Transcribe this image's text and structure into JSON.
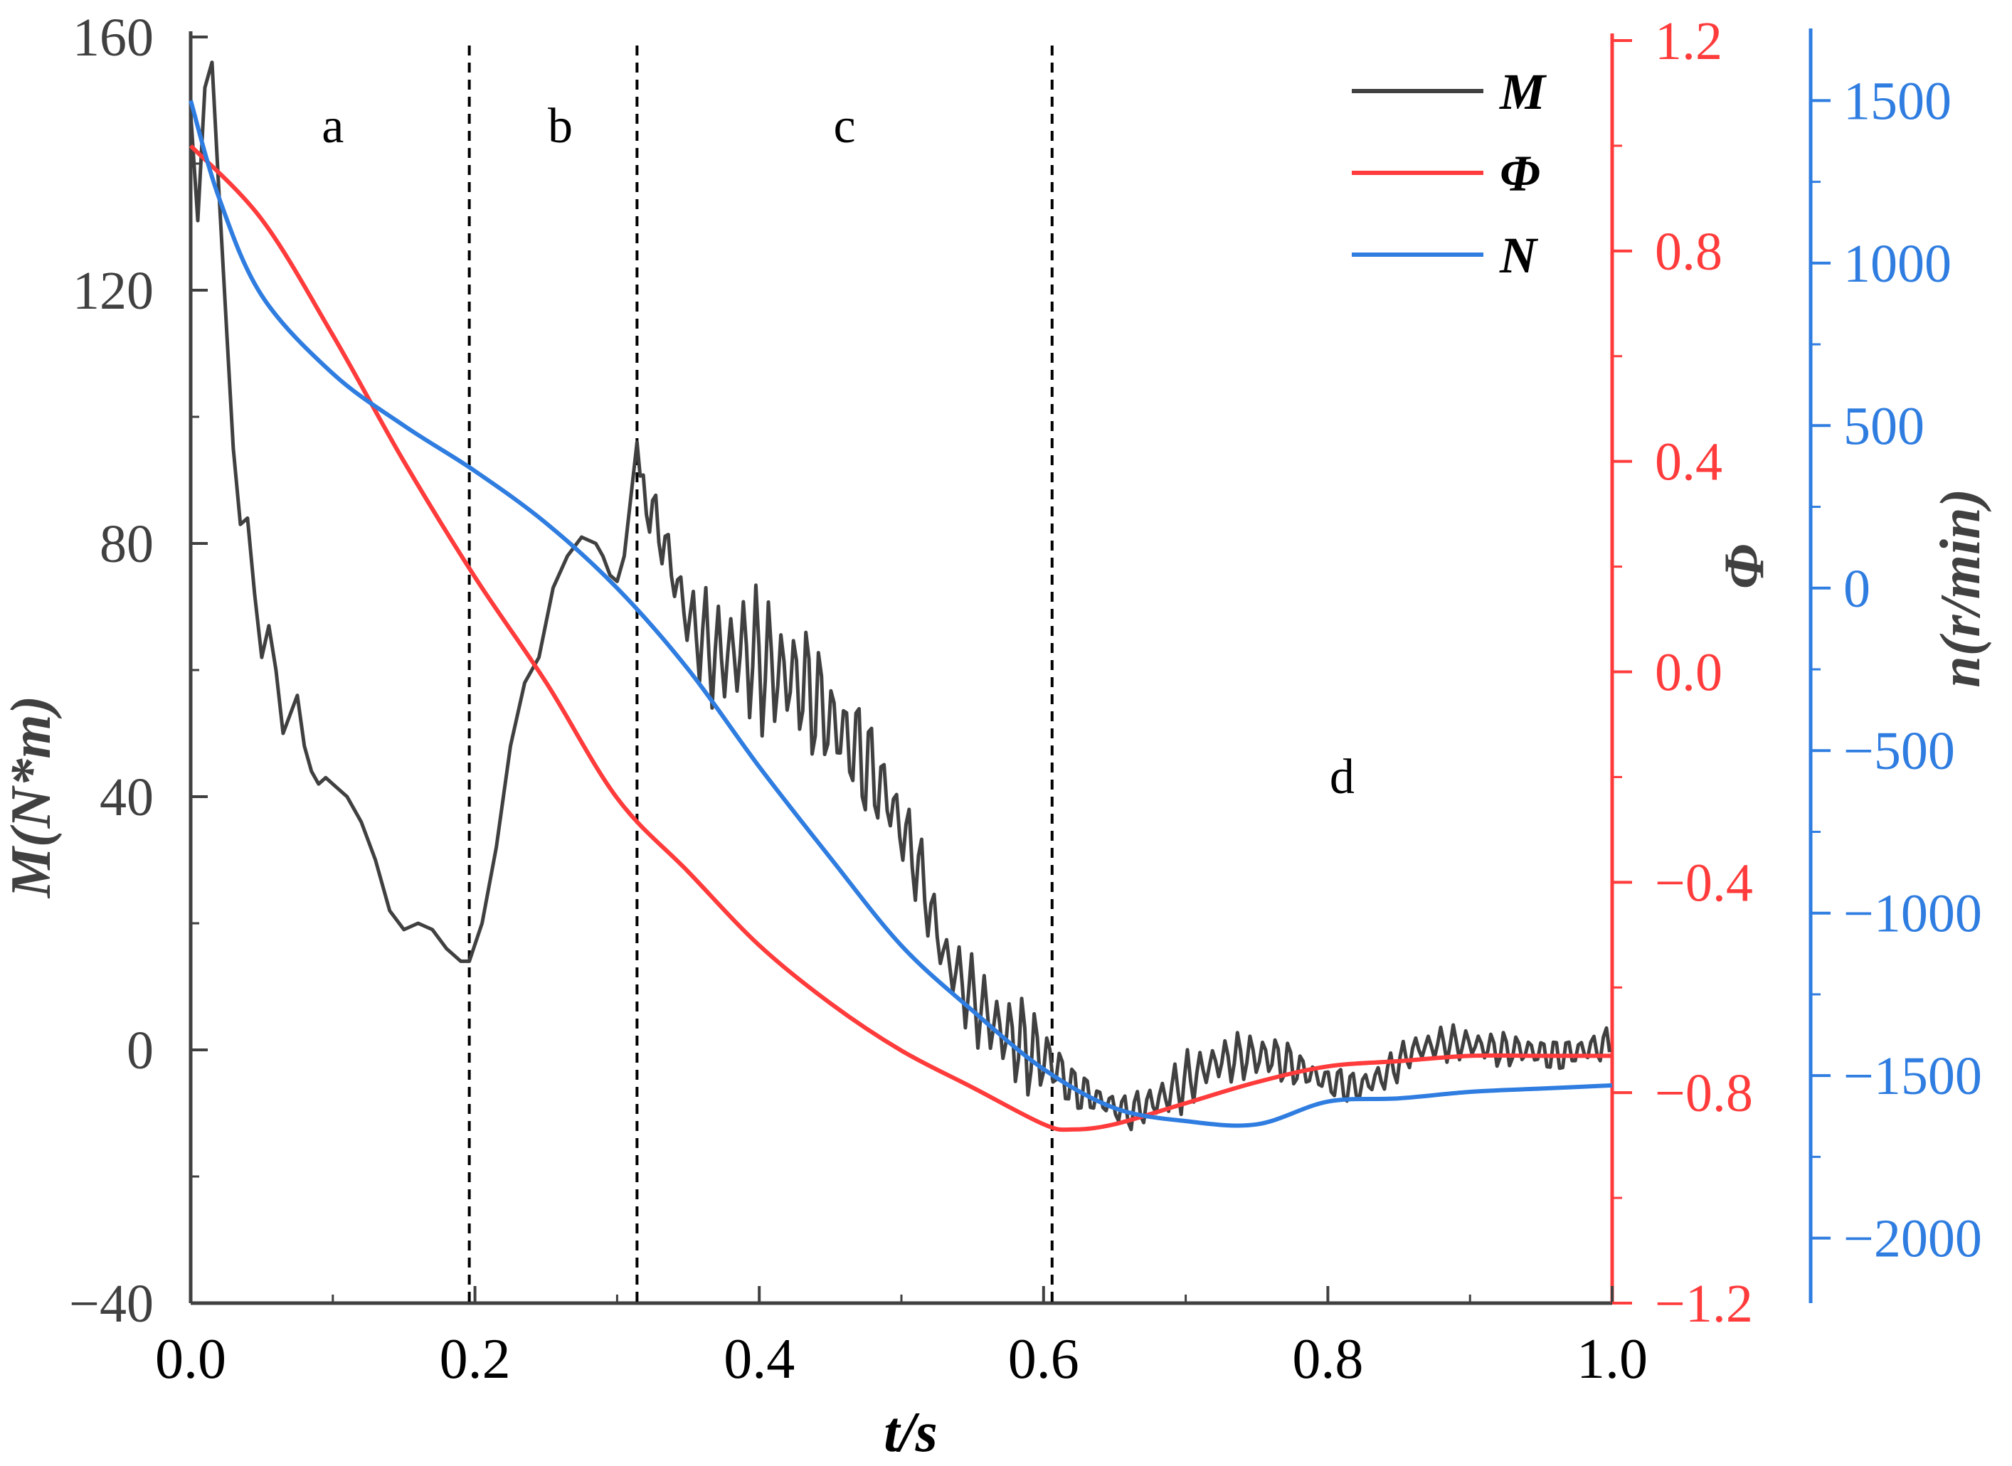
{
  "chart_data": {
    "type": "line",
    "xlabel": "t/s",
    "xlim": [
      0.0,
      1.0
    ],
    "xticks": [
      "0.0",
      "0.2",
      "0.4",
      "0.6",
      "0.8",
      "1.0"
    ],
    "axes": {
      "left": {
        "label": "M(N*m)",
        "ylim": [
          -40,
          160
        ],
        "ticks": [
          "-40",
          "0",
          "40",
          "80",
          "120",
          "160"
        ],
        "color": "#404040"
      },
      "right_red": {
        "label": "Φ",
        "ylim": [
          -1.2,
          1.2
        ],
        "ticks": [
          "-1.2",
          "-0.8",
          "-0.4",
          "0.0",
          "0.4",
          "0.8",
          "1.2"
        ],
        "color": "#ff3b3b"
      },
      "right_blue": {
        "label": "n(r/min)",
        "ylim": [
          -2200,
          1700
        ],
        "ticks": [
          "-2000",
          "-1500",
          "-1000",
          "-500",
          "0",
          "500",
          "1000",
          "1500"
        ],
        "color": "#2f7de0"
      }
    },
    "regions": [
      {
        "label": "a",
        "x": 0.1
      },
      {
        "label": "b",
        "x": 0.26
      },
      {
        "label": "c",
        "x": 0.46
      },
      {
        "label": "d",
        "x": 0.81
      }
    ],
    "boundaries": [
      0.196,
      0.314,
      0.606
    ],
    "legend": {
      "placement": "top-right",
      "entries": [
        "M",
        "Φ",
        "N"
      ]
    },
    "grid": false,
    "series": [
      {
        "name": "M",
        "axis": "left",
        "color": "#404040",
        "x": [
          0.0,
          0.005,
          0.01,
          0.015,
          0.02,
          0.025,
          0.03,
          0.035,
          0.04,
          0.045,
          0.05,
          0.055,
          0.06,
          0.065,
          0.07,
          0.075,
          0.08,
          0.085,
          0.09,
          0.095,
          0.1,
          0.11,
          0.12,
          0.13,
          0.14,
          0.15,
          0.16,
          0.17,
          0.18,
          0.19,
          0.196,
          0.205,
          0.215,
          0.225,
          0.235,
          0.245,
          0.255,
          0.265,
          0.275,
          0.285,
          0.29,
          0.295,
          0.3,
          0.305,
          0.31,
          0.314
        ],
        "values": [
          148,
          131,
          152,
          156,
          135,
          115,
          95,
          83,
          84,
          72,
          62,
          67,
          60,
          50,
          53,
          56,
          48,
          44,
          42,
          43,
          42,
          40,
          36,
          30,
          22,
          19,
          20,
          19,
          16,
          14,
          14,
          20,
          32,
          48,
          58,
          62,
          73,
          78,
          81,
          80,
          78,
          75,
          74,
          78,
          88,
          96
        ],
        "oscillation": {
          "x": [
            0.314,
            0.33,
            0.35,
            0.37,
            0.39,
            0.41,
            0.43,
            0.45,
            0.47,
            0.49,
            0.51,
            0.53,
            0.55,
            0.57,
            0.59,
            0.606,
            0.62,
            0.64,
            0.66,
            0.68,
            0.7,
            0.72,
            0.74,
            0.76,
            0.78,
            0.8,
            0.82,
            0.84,
            0.86,
            0.88,
            0.9,
            0.92,
            0.94,
            0.96,
            0.98,
            1.0
          ],
          "center": [
            90,
            82,
            68,
            62,
            63,
            60,
            58,
            52,
            47,
            40,
            30,
            15,
            8,
            3,
            0,
            -2,
            -6,
            -8,
            -10,
            -8,
            -5,
            -2,
            -1,
            -1,
            -3,
            -5,
            -6,
            -4,
            0,
            1,
            1,
            0,
            0,
            -1,
            0,
            1
          ],
          "amplitude": [
            4,
            5,
            7,
            10,
            12,
            12,
            11,
            10,
            10,
            8,
            7,
            6,
            7,
            8,
            8,
            7,
            4,
            3,
            3,
            4,
            5,
            4,
            4,
            5,
            3,
            3,
            3,
            3,
            3,
            3,
            3,
            3,
            3,
            3,
            3,
            3
          ]
        }
      },
      {
        "name": "Φ",
        "axis": "right_red",
        "color": "#ff3b3b",
        "x": [
          0.0,
          0.05,
          0.1,
          0.15,
          0.2,
          0.25,
          0.3,
          0.35,
          0.4,
          0.45,
          0.5,
          0.55,
          0.6,
          0.62,
          0.65,
          0.7,
          0.75,
          0.8,
          0.85,
          0.9,
          0.95,
          1.0
        ],
        "values": [
          1.0,
          0.86,
          0.64,
          0.4,
          0.18,
          -0.02,
          -0.24,
          -0.38,
          -0.52,
          -0.63,
          -0.72,
          -0.79,
          -0.86,
          -0.87,
          -0.86,
          -0.82,
          -0.78,
          -0.75,
          -0.74,
          -0.73,
          -0.73,
          -0.73
        ]
      },
      {
        "name": "N",
        "axis": "right_blue",
        "color": "#2f7de0",
        "x": [
          0.0,
          0.02,
          0.05,
          0.1,
          0.15,
          0.2,
          0.25,
          0.3,
          0.35,
          0.4,
          0.45,
          0.5,
          0.55,
          0.6,
          0.65,
          0.7,
          0.75,
          0.8,
          0.85,
          0.9,
          0.95,
          1.0
        ],
        "values": [
          1500,
          1200,
          900,
          660,
          500,
          360,
          200,
          0,
          -250,
          -550,
          -830,
          -1100,
          -1300,
          -1480,
          -1600,
          -1640,
          -1650,
          -1580,
          -1570,
          -1550,
          -1540,
          -1530
        ]
      }
    ]
  }
}
